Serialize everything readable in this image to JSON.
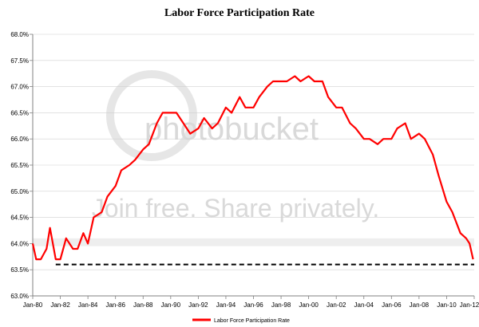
{
  "watermark": {
    "brand": "photobucket",
    "tagline": "Join free. Share privately."
  },
  "colors": {
    "series": "#ff0000",
    "reference_line": "#000000",
    "grid": "#d0d0d0",
    "band": "#eeeeee",
    "axis": "#808080"
  },
  "chart_data": {
    "type": "line",
    "title": "Labor Force Participation Rate",
    "xlabel": "",
    "ylabel": "",
    "x_ticks": [
      "Jan-80",
      "Jan-82",
      "Jan-84",
      "Jan-86",
      "Jan-88",
      "Jan-90",
      "Jan-92",
      "Jan-94",
      "Jan-96",
      "Jan-98",
      "Jan-00",
      "Jan-02",
      "Jan-04",
      "Jan-06",
      "Jan-08",
      "Jan-10",
      "Jan-12"
    ],
    "y_ticks": [
      "63.0%",
      "63.5%",
      "64.0%",
      "64.5%",
      "65.0%",
      "65.5%",
      "66.0%",
      "66.5%",
      "67.0%",
      "67.5%",
      "68.0%"
    ],
    "ylim": [
      63.0,
      68.0
    ],
    "xlim": [
      "1980-01",
      "2012-01"
    ],
    "grid": true,
    "legend_position": "bottom-center",
    "series": [
      {
        "name": "Labor Force Participation Rate",
        "points": [
          [
            "1980-01",
            64.0
          ],
          [
            "1980-04",
            63.7
          ],
          [
            "1980-08",
            63.7
          ],
          [
            "1981-01",
            63.9
          ],
          [
            "1981-04",
            64.3
          ],
          [
            "1981-09",
            63.7
          ],
          [
            "1982-01",
            63.7
          ],
          [
            "1982-06",
            64.1
          ],
          [
            "1982-12",
            63.9
          ],
          [
            "1983-04",
            63.9
          ],
          [
            "1983-09",
            64.2
          ],
          [
            "1984-01",
            64.0
          ],
          [
            "1984-06",
            64.5
          ],
          [
            "1985-01",
            64.6
          ],
          [
            "1985-06",
            64.9
          ],
          [
            "1986-01",
            65.1
          ],
          [
            "1986-06",
            65.4
          ],
          [
            "1987-01",
            65.5
          ],
          [
            "1987-06",
            65.6
          ],
          [
            "1988-01",
            65.8
          ],
          [
            "1988-06",
            65.9
          ],
          [
            "1989-01",
            66.3
          ],
          [
            "1989-06",
            66.5
          ],
          [
            "1990-01",
            66.5
          ],
          [
            "1990-06",
            66.5
          ],
          [
            "1990-12",
            66.3
          ],
          [
            "1991-06",
            66.1
          ],
          [
            "1992-01",
            66.2
          ],
          [
            "1992-06",
            66.4
          ],
          [
            "1993-01",
            66.2
          ],
          [
            "1993-06",
            66.3
          ],
          [
            "1994-01",
            66.6
          ],
          [
            "1994-06",
            66.5
          ],
          [
            "1995-01",
            66.8
          ],
          [
            "1995-06",
            66.6
          ],
          [
            "1996-01",
            66.6
          ],
          [
            "1996-06",
            66.8
          ],
          [
            "1997-01",
            67.0
          ],
          [
            "1997-06",
            67.1
          ],
          [
            "1998-01",
            67.1
          ],
          [
            "1998-06",
            67.1
          ],
          [
            "1999-01",
            67.2
          ],
          [
            "1999-06",
            67.1
          ],
          [
            "2000-01",
            67.2
          ],
          [
            "2000-06",
            67.1
          ],
          [
            "2001-01",
            67.1
          ],
          [
            "2001-06",
            66.8
          ],
          [
            "2002-01",
            66.6
          ],
          [
            "2002-06",
            66.6
          ],
          [
            "2003-01",
            66.3
          ],
          [
            "2003-06",
            66.2
          ],
          [
            "2004-01",
            66.0
          ],
          [
            "2004-06",
            66.0
          ],
          [
            "2005-01",
            65.9
          ],
          [
            "2005-06",
            66.0
          ],
          [
            "2006-01",
            66.0
          ],
          [
            "2006-06",
            66.2
          ],
          [
            "2007-01",
            66.3
          ],
          [
            "2007-06",
            66.0
          ],
          [
            "2008-01",
            66.1
          ],
          [
            "2008-06",
            66.0
          ],
          [
            "2009-01",
            65.7
          ],
          [
            "2009-06",
            65.3
          ],
          [
            "2010-01",
            64.8
          ],
          [
            "2010-06",
            64.6
          ],
          [
            "2011-01",
            64.2
          ],
          [
            "2011-06",
            64.1
          ],
          [
            "2011-09",
            64.0
          ],
          [
            "2011-12",
            63.7
          ]
        ]
      }
    ],
    "reference_line": {
      "y": 63.6,
      "style": "dashed"
    }
  }
}
